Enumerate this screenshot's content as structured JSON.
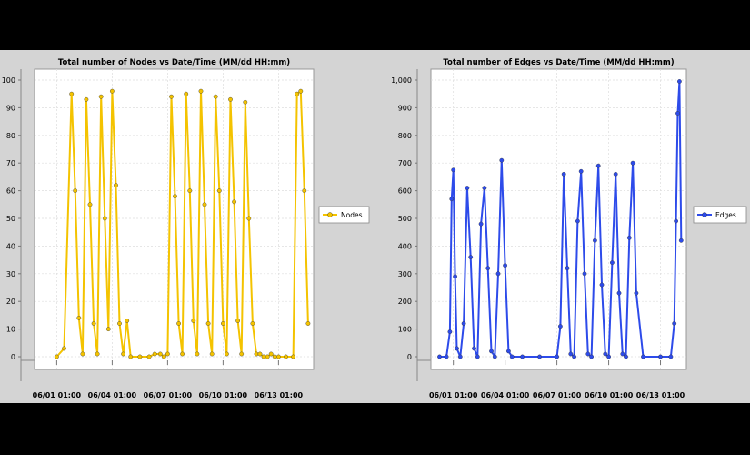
{
  "chart_data": [
    {
      "type": "line",
      "title": "Total number of Nodes vs Date/Time (MM/dd HH:mm)",
      "xlabel": "",
      "ylabel": "",
      "ylim": [
        0,
        100
      ],
      "yticks": [
        "0",
        "10",
        "20",
        "30",
        "40",
        "50",
        "60",
        "70",
        "80",
        "90",
        "100"
      ],
      "xtick_labels": [
        "06/01 01:00",
        "06/04 01:00",
        "06/07 01:00",
        "06/10 01:00",
        "06/13 01:00"
      ],
      "color": "#f4c300",
      "legend_position": "right",
      "series": [
        {
          "name": "Nodes",
          "x": [
            0,
            0.4,
            0.8,
            1.0,
            1.2,
            1.4,
            1.6,
            1.8,
            2.0,
            2.2,
            2.4,
            2.6,
            2.8,
            3.0,
            3.2,
            3.4,
            3.6,
            3.8,
            4.0,
            4.5,
            5.0,
            5.3,
            5.6,
            5.8,
            6.0,
            6.2,
            6.4,
            6.6,
            6.8,
            7.0,
            7.2,
            7.4,
            7.6,
            7.8,
            8.0,
            8.2,
            8.4,
            8.6,
            8.8,
            9.0,
            9.2,
            9.4,
            9.6,
            9.8,
            10.0,
            10.2,
            10.4,
            10.6,
            10.8,
            11.0,
            11.2,
            11.4,
            11.6,
            11.8,
            12.0,
            12.4,
            12.8,
            13.0,
            13.2,
            13.4,
            13.6
          ],
          "values": [
            0,
            3,
            95,
            60,
            14,
            1,
            93,
            55,
            12,
            1,
            94,
            50,
            10,
            96,
            62,
            12,
            1,
            13,
            0,
            0,
            0,
            1,
            1,
            0,
            1,
            94,
            58,
            12,
            1,
            95,
            60,
            13,
            1,
            96,
            55,
            12,
            1,
            94,
            60,
            12,
            1,
            93,
            56,
            13,
            1,
            92,
            50,
            12,
            1,
            1,
            0,
            0,
            1,
            0,
            0,
            0,
            0,
            95,
            96,
            60,
            12
          ],
          "x_unit": "days from 06/01 01:00"
        }
      ]
    },
    {
      "type": "line",
      "title": "Total number of Edges vs Date/Time (MM/dd HH:mm)",
      "xlabel": "",
      "ylabel": "",
      "ylim": [
        0,
        1000
      ],
      "yticks": [
        "0",
        "100",
        "200",
        "300",
        "400",
        "500",
        "600",
        "700",
        "800",
        "900",
        "1,000"
      ],
      "xtick_labels": [
        "06/01 01:00",
        "06/04 01:00",
        "06/07 01:00",
        "06/10 01:00",
        "06/13 01:00"
      ],
      "color": "#2d4bea",
      "legend_position": "right",
      "series": [
        {
          "name": "Edges",
          "x": [
            -0.8,
            -0.4,
            -0.2,
            -0.1,
            0,
            0.1,
            0.2,
            0.4,
            0.6,
            0.8,
            1.0,
            1.2,
            1.4,
            1.6,
            1.8,
            2.0,
            2.2,
            2.4,
            2.6,
            2.8,
            3.0,
            3.2,
            3.4,
            4.0,
            5.0,
            6.0,
            6.2,
            6.4,
            6.6,
            6.8,
            7.0,
            7.2,
            7.4,
            7.6,
            7.8,
            8.0,
            8.2,
            8.4,
            8.6,
            8.8,
            9.0,
            9.2,
            9.4,
            9.6,
            9.8,
            10.0,
            10.2,
            10.4,
            10.6,
            11.0,
            12.0,
            12.6,
            12.8,
            12.9,
            13.0,
            13.1,
            13.2
          ],
          "values": [
            0,
            0,
            90,
            570,
            675,
            290,
            30,
            0,
            120,
            610,
            360,
            30,
            0,
            480,
            610,
            320,
            20,
            0,
            300,
            710,
            330,
            20,
            0,
            0,
            0,
            0,
            110,
            660,
            320,
            10,
            0,
            490,
            670,
            300,
            10,
            0,
            420,
            690,
            260,
            10,
            0,
            340,
            660,
            230,
            10,
            0,
            430,
            700,
            230,
            0,
            0,
            0,
            120,
            490,
            880,
            995,
            420
          ],
          "x_unit": "days from 06/01 01:00"
        }
      ]
    }
  ]
}
